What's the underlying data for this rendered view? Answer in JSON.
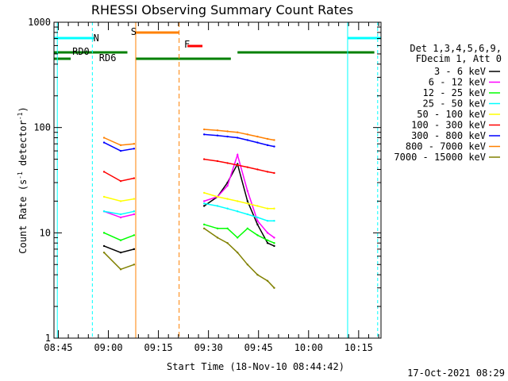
{
  "chart_data": {
    "type": "line",
    "title": "RHESSI Observing Summary Count Rates",
    "xlabel": "Start Time (18-Nov-10 08:44:42)",
    "ylabel": "Count Rate (s",
    "ylabel_sup1": "-1",
    "ylabel_mid": " detector",
    "ylabel_sup2": "-1",
    "ylabel_end": ")",
    "y_scale": "log",
    "ylim": [
      1,
      1000
    ],
    "y_ticks": [
      "1",
      "10",
      "100",
      "1000"
    ],
    "x_ticks": [
      "08:45",
      "09:00",
      "09:15",
      "09:30",
      "09:45",
      "10:00",
      "10:15"
    ],
    "xlim_minutes": [
      -2,
      96
    ],
    "footer_date": "17-Oct-2021 08:29",
    "legend": {
      "header1": "Det 1,3,4,5,6,9,",
      "header2": "FDecim 1, Att 0",
      "position": "right"
    },
    "flags": [
      {
        "label": "N",
        "color": "#00ffff"
      },
      {
        "label": "S",
        "color": "#ff8000"
      },
      {
        "label": "F",
        "color": "#ff0000"
      },
      {
        "label": "RD0",
        "color": "#008000"
      },
      {
        "label": "RD6",
        "color": "#008000"
      }
    ],
    "series": [
      {
        "name": "3 - 6 keV",
        "color": "#000000",
        "segments": [
          {
            "x": [
              13,
              18,
              22
            ],
            "y": [
              7.5,
              6.5,
              7
            ]
          },
          {
            "x": [
              43,
              47,
              50,
              53,
              56,
              59,
              62,
              64
            ],
            "y": [
              18,
              22,
              30,
              45,
              20,
              12,
              8,
              7.5
            ]
          }
        ]
      },
      {
        "name": "6 - 12 keV",
        "color": "#ff00ff",
        "segments": [
          {
            "x": [
              13,
              18,
              22
            ],
            "y": [
              16,
              14,
              15
            ]
          },
          {
            "x": [
              43,
              47,
              50,
              53,
              56,
              59,
              62,
              64
            ],
            "y": [
              20,
              22,
              28,
              55,
              25,
              13,
              10,
              9
            ]
          }
        ]
      },
      {
        "name": "12 - 25 keV",
        "color": "#00ff00",
        "segments": [
          {
            "x": [
              13,
              18,
              22
            ],
            "y": [
              10,
              8.5,
              9.5
            ]
          },
          {
            "x": [
              43,
              47,
              50,
              53,
              56,
              59,
              62,
              64
            ],
            "y": [
              12,
              11,
              11,
              9,
              11,
              9.5,
              8.5,
              8
            ]
          }
        ]
      },
      {
        "name": "25 - 50 keV",
        "color": "#00ffff",
        "segments": [
          {
            "x": [
              13,
              18,
              22
            ],
            "y": [
              16,
              15,
              16
            ]
          },
          {
            "x": [
              43,
              47,
              50,
              53,
              56,
              59,
              62,
              64
            ],
            "y": [
              19,
              18,
              17,
              16,
              15,
              14,
              13,
              13
            ]
          }
        ]
      },
      {
        "name": "50 - 100 keV",
        "color": "#ffff00",
        "segments": [
          {
            "x": [
              13,
              18,
              22
            ],
            "y": [
              22,
              20,
              21
            ]
          },
          {
            "x": [
              43,
              47,
              50,
              53,
              56,
              59,
              62,
              64
            ],
            "y": [
              24,
              22,
              21,
              20,
              19,
              18,
              17,
              17
            ]
          }
        ]
      },
      {
        "name": "100 - 300 keV",
        "color": "#ff0000",
        "segments": [
          {
            "x": [
              13,
              18,
              22
            ],
            "y": [
              38,
              31,
              33
            ]
          },
          {
            "x": [
              43,
              47,
              50,
              53,
              56,
              59,
              62,
              64
            ],
            "y": [
              50,
              48,
              46,
              44,
              42,
              40,
              38,
              37
            ]
          }
        ]
      },
      {
        "name": "300 - 800 keV",
        "color": "#0000ff",
        "segments": [
          {
            "x": [
              13,
              18,
              22
            ],
            "y": [
              72,
              60,
              63
            ]
          },
          {
            "x": [
              43,
              47,
              50,
              53,
              56,
              59,
              62,
              64
            ],
            "y": [
              86,
              84,
              82,
              80,
              76,
              72,
              68,
              66
            ]
          }
        ]
      },
      {
        "name": "800 - 7000 keV",
        "color": "#ff8000",
        "segments": [
          {
            "x": [
              13,
              18,
              22
            ],
            "y": [
              80,
              68,
              70
            ]
          },
          {
            "x": [
              43,
              47,
              50,
              53,
              56,
              59,
              62,
              64
            ],
            "y": [
              96,
              94,
              92,
              90,
              86,
              82,
              78,
              76
            ]
          }
        ]
      },
      {
        "name": "7000 - 15000 keV",
        "color": "#808000",
        "segments": [
          {
            "x": [
              13,
              18,
              22
            ],
            "y": [
              6.5,
              4.5,
              5
            ]
          },
          {
            "x": [
              43,
              47,
              50,
              53,
              56,
              59,
              62,
              64
            ],
            "y": [
              11,
              9,
              8,
              6.5,
              5,
              4,
              3.5,
              3
            ]
          }
        ]
      }
    ]
  }
}
